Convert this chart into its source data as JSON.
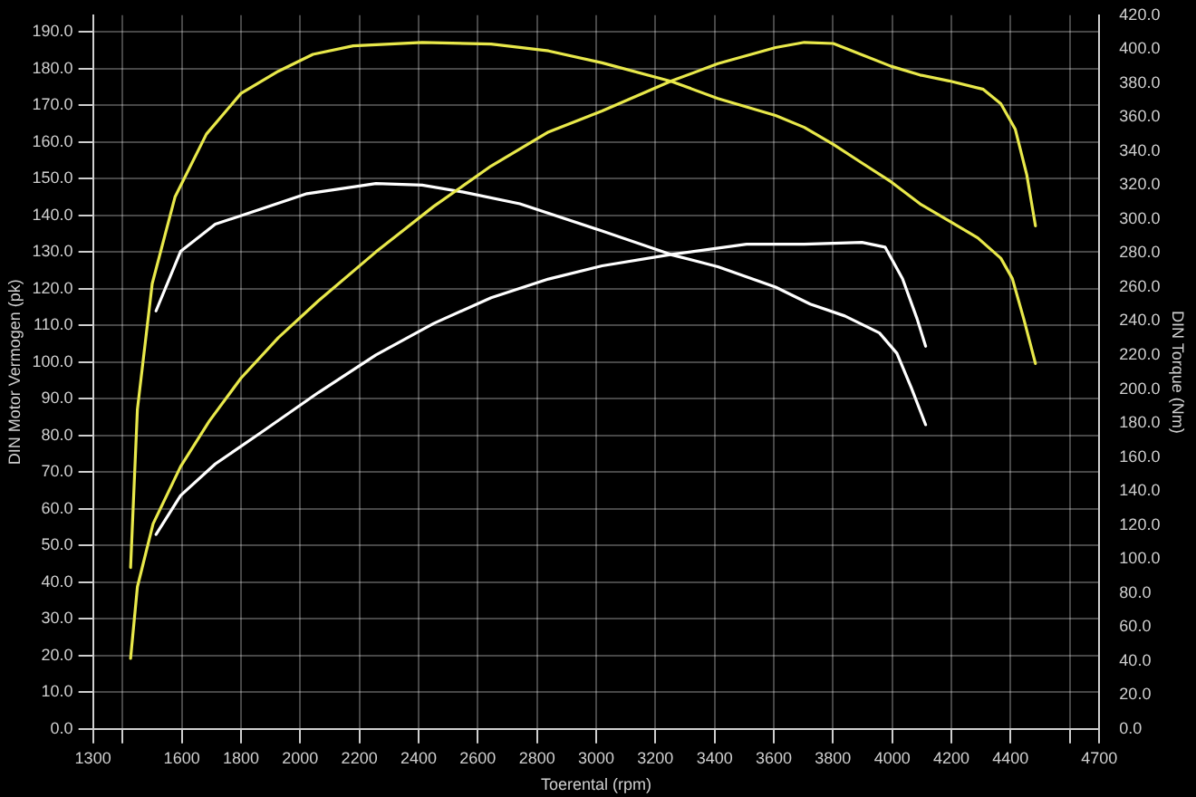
{
  "chart_data": {
    "type": "line",
    "xlabel": "Toerental (rpm)",
    "ylabel": "DIN Motor Vermogen (pk)",
    "y2label": "DIN Torque (Nm)",
    "xlim": [
      1300,
      4700
    ],
    "xticks": [
      1300,
      {
        "value": 1400,
        "label": null
      },
      1600,
      1800,
      2000,
      2200,
      2400,
      2600,
      2800,
      3000,
      3200,
      3400,
      3600,
      3800,
      4000,
      4200,
      4400,
      {
        "value": 4600,
        "label": null
      },
      4700
    ],
    "ylim": [
      0,
      194.5
    ],
    "yticks": [
      {
        "value": 0,
        "label": "0.0"
      },
      {
        "value": 10,
        "label": "10.0"
      },
      {
        "value": 20,
        "label": "20.0"
      },
      {
        "value": 30,
        "label": "30.0"
      },
      {
        "value": 40,
        "label": "40.0"
      },
      {
        "value": 50,
        "label": "50.0"
      },
      {
        "value": 60,
        "label": "60.0"
      },
      {
        "value": 70,
        "label": "70.0"
      },
      {
        "value": 80,
        "label": "80.0"
      },
      {
        "value": 90,
        "label": "90.0"
      },
      {
        "value": 100,
        "label": "100.0"
      },
      {
        "value": 110,
        "label": "110.0"
      },
      {
        "value": 120,
        "label": "120.0"
      },
      {
        "value": 130,
        "label": "130.0"
      },
      {
        "value": 140,
        "label": "140.0"
      },
      {
        "value": 150,
        "label": "150.0"
      },
      {
        "value": 160,
        "label": "160.0"
      },
      {
        "value": 170,
        "label": "170.0"
      },
      {
        "value": 180,
        "label": "180.0"
      },
      {
        "value": 190,
        "label": "190.0"
      }
    ],
    "y2lim": [
      0,
      420
    ],
    "y2ticks": [
      {
        "value": 0,
        "label": "0.0"
      },
      {
        "value": 20,
        "label": "20.0"
      },
      {
        "value": 40,
        "label": "40.0"
      },
      {
        "value": 60,
        "label": "60.0"
      },
      {
        "value": 80,
        "label": "80.0"
      },
      {
        "value": 100,
        "label": "100.0"
      },
      {
        "value": 120,
        "label": "120.0"
      },
      {
        "value": 140,
        "label": "140.0"
      },
      {
        "value": 160,
        "label": "160.0"
      },
      {
        "value": 180,
        "label": "180.0"
      },
      {
        "value": 200,
        "label": "200.0"
      },
      {
        "value": 220,
        "label": "220.0"
      },
      {
        "value": 240,
        "label": "240.0"
      },
      {
        "value": 260,
        "label": "260.0"
      },
      {
        "value": 280,
        "label": "280.0"
      },
      {
        "value": 300,
        "label": "300.0"
      },
      {
        "value": 320,
        "label": "320.0"
      },
      {
        "value": 340,
        "label": "340.0"
      },
      {
        "value": 360,
        "label": "360.0"
      },
      {
        "value": 380,
        "label": "380.0"
      },
      {
        "value": 400,
        "label": "400.0"
      },
      {
        "value": 420,
        "label": "420.0"
      }
    ],
    "grid": true,
    "legend": false,
    "marker": "none",
    "line_style": "solid",
    "series": [
      {
        "color": "#e8e84a",
        "axis": "y2",
        "x": [
          1427,
          1450,
          1500,
          1577,
          1683,
          1800,
          1926,
          2043,
          2179,
          2412,
          2645,
          2839,
          3020,
          3255,
          3411,
          3606,
          3703,
          3801,
          3898,
          3996,
          4094,
          4192,
          4289,
          4367,
          4406,
          4445,
          4484
        ],
        "values": [
          95,
          188,
          262,
          313,
          350,
          374,
          387,
          397,
          402,
          404,
          403,
          399,
          392,
          381,
          371,
          361,
          354,
          344,
          333,
          322,
          309,
          299,
          289,
          277,
          265,
          241,
          215
        ]
      },
      {
        "color": "#e8e84a",
        "axis": "y",
        "x": [
          1427,
          1450,
          1503,
          1596,
          1693,
          1800,
          1926,
          2062,
          2256,
          2451,
          2645,
          2839,
          3020,
          3255,
          3411,
          3606,
          3703,
          3801,
          3898,
          3996,
          4094,
          4192,
          4308,
          4367,
          4416,
          4455,
          4484
        ],
        "values": [
          19.2,
          38.7,
          55.9,
          71.5,
          83.9,
          95.6,
          106.6,
          116.7,
          130,
          142.4,
          153.4,
          162.7,
          168.4,
          176.6,
          181.3,
          185.7,
          187.1,
          186.8,
          183.7,
          180.6,
          178.2,
          176.6,
          174.3,
          170.4,
          163.4,
          150.9,
          137.1
        ]
      },
      {
        "color": "#ffffff",
        "axis": "y2",
        "x": [
          1513,
          1596,
          1713,
          1868,
          2023,
          2179,
          2256,
          2412,
          2548,
          2742,
          3020,
          3255,
          3411,
          3606,
          3723,
          3840,
          3957,
          4016,
          4064,
          4113
        ],
        "values": [
          246,
          281,
          297,
          306,
          315,
          319,
          321,
          320,
          316,
          309,
          293,
          279,
          272,
          260,
          250,
          243,
          233,
          221,
          201,
          179
        ]
      },
      {
        "color": "#ffffff",
        "axis": "y",
        "x": [
          1513,
          1596,
          1713,
          1868,
          2062,
          2256,
          2451,
          2645,
          2839,
          3020,
          3255,
          3508,
          3703,
          3898,
          3976,
          4035,
          4084,
          4113
        ],
        "values": [
          53,
          63.6,
          72.2,
          80.8,
          91.7,
          101.9,
          110.5,
          117.5,
          122.6,
          126.2,
          129.3,
          132.1,
          132.1,
          132.6,
          131.3,
          122.7,
          111.8,
          104.3
        ]
      }
    ]
  }
}
